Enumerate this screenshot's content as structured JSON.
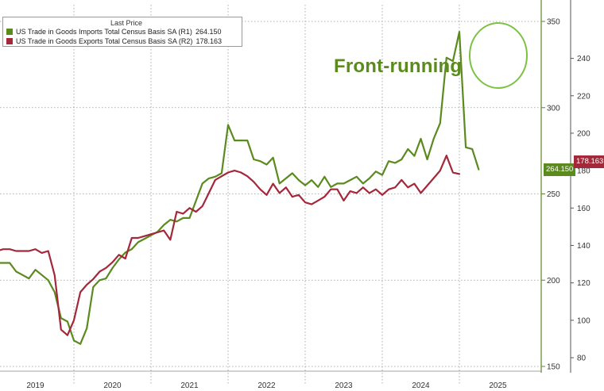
{
  "legend": {
    "header": "Last Price",
    "imports_label": "US Trade in Goods Imports Total Census Basis SA  (R1)",
    "imports_value": "264.150",
    "exports_label": "US Trade in Goods Exports Total Census Basis SA  (R2)",
    "exports_value": "178.163"
  },
  "annotation": {
    "text": "Front-running"
  },
  "colors": {
    "imports": "#5b8a1e",
    "exports": "#a3283a",
    "grid": "#9a9a9a",
    "annotation": "#5b8a1e"
  },
  "chart_data": {
    "type": "line",
    "title": "",
    "grid": true,
    "legend_position": "top-left",
    "x_ticks": [
      "2019",
      "2020",
      "2021",
      "2022",
      "2023",
      "2024",
      "2025"
    ],
    "y_left": {
      "label": "",
      "range": [
        150,
        350
      ],
      "ticks": [
        150,
        200,
        250,
        300,
        350
      ]
    },
    "y_right": {
      "label": "",
      "range": [
        80,
        250
      ],
      "ticks": [
        80,
        100,
        120,
        140,
        160,
        180,
        200,
        220,
        240
      ]
    },
    "series": [
      {
        "name": "US Trade in Goods Imports Total Census Basis SA (R1)",
        "axis": "left",
        "last_value": "264.150",
        "points": [
          [
            "2019-01",
            210.0
          ],
          [
            "2019-02",
            210.0
          ],
          [
            "2019-03",
            210.0
          ],
          [
            "2019-04",
            205.0
          ],
          [
            "2019-05",
            203.0
          ],
          [
            "2019-06",
            201.0
          ],
          [
            "2019-07",
            206.0
          ],
          [
            "2019-08",
            203.0
          ],
          [
            "2019-09",
            200.0
          ],
          [
            "2019-10",
            193.0
          ],
          [
            "2019-11",
            178.0
          ],
          [
            "2019-12",
            176.0
          ],
          [
            "2020-01",
            165.0
          ],
          [
            "2020-02",
            163.0
          ],
          [
            "2020-03",
            172.0
          ],
          [
            "2020-04",
            196.0
          ],
          [
            "2020-05",
            200.0
          ],
          [
            "2020-06",
            201.0
          ],
          [
            "2020-07",
            207.0
          ],
          [
            "2020-08",
            212.0
          ],
          [
            "2020-09",
            216.0
          ],
          [
            "2020-10",
            218.0
          ],
          [
            "2020-11",
            222.0
          ],
          [
            "2020-12",
            224.0
          ],
          [
            "2021-01",
            226.0
          ],
          [
            "2021-02",
            228.0
          ],
          [
            "2021-03",
            232.0
          ],
          [
            "2021-04",
            235.0
          ],
          [
            "2021-05",
            234.0
          ],
          [
            "2021-06",
            236.0
          ],
          [
            "2021-07",
            236.0
          ],
          [
            "2021-08",
            246.0
          ],
          [
            "2021-09",
            256.0
          ],
          [
            "2021-10",
            259.0
          ],
          [
            "2021-11",
            260.0
          ],
          [
            "2021-12",
            262.0
          ],
          [
            "2022-01",
            290.0
          ],
          [
            "2022-02",
            281.0
          ],
          [
            "2022-03",
            281.0
          ],
          [
            "2022-04",
            281.0
          ],
          [
            "2022-05",
            270.0
          ],
          [
            "2022-06",
            269.0
          ],
          [
            "2022-07",
            267.0
          ],
          [
            "2022-08",
            271.0
          ],
          [
            "2022-09",
            256.0
          ],
          [
            "2022-10",
            259.0
          ],
          [
            "2022-11",
            262.0
          ],
          [
            "2022-12",
            258.0
          ],
          [
            "2023-01",
            255.0
          ],
          [
            "2023-02",
            258.0
          ],
          [
            "2023-03",
            254.0
          ],
          [
            "2023-04",
            260.0
          ],
          [
            "2023-05",
            254.0
          ],
          [
            "2023-06",
            256.0
          ],
          [
            "2023-07",
            256.0
          ],
          [
            "2023-08",
            258.0
          ],
          [
            "2023-09",
            260.0
          ],
          [
            "2023-10",
            256.0
          ],
          [
            "2023-11",
            259.0
          ],
          [
            "2023-12",
            263.0
          ],
          [
            "2024-01",
            261.0
          ],
          [
            "2024-02",
            269.0
          ],
          [
            "2024-03",
            268.0
          ],
          [
            "2024-04",
            270.0
          ],
          [
            "2024-05",
            276.0
          ],
          [
            "2024-06",
            272.0
          ],
          [
            "2024-07",
            282.0
          ],
          [
            "2024-08",
            270.0
          ],
          [
            "2024-09",
            282.0
          ],
          [
            "2024-10",
            291.0
          ],
          [
            "2024-11",
            329.0
          ],
          [
            "2024-12",
            327.0
          ],
          [
            "2025-01",
            344.0
          ],
          [
            "2025-02",
            277.0
          ],
          [
            "2025-03",
            276.0
          ],
          [
            "2025-04",
            264.2
          ]
        ]
      },
      {
        "name": "US Trade in Goods Exports Total Census Basis SA (R2)",
        "axis": "right",
        "last_value": "178.163",
        "points": [
          [
            "2019-01",
            137.0
          ],
          [
            "2019-02",
            138.0
          ],
          [
            "2019-03",
            138.0
          ],
          [
            "2019-04",
            137.0
          ],
          [
            "2019-05",
            137.0
          ],
          [
            "2019-06",
            137.0
          ],
          [
            "2019-07",
            138.0
          ],
          [
            "2019-08",
            136.0
          ],
          [
            "2019-09",
            137.0
          ],
          [
            "2019-10",
            124.0
          ],
          [
            "2019-11",
            95.0
          ],
          [
            "2019-12",
            92.0
          ],
          [
            "2020-01",
            100.0
          ],
          [
            "2020-02",
            115.0
          ],
          [
            "2020-03",
            119.0
          ],
          [
            "2020-04",
            122.0
          ],
          [
            "2020-05",
            126.0
          ],
          [
            "2020-06",
            128.0
          ],
          [
            "2020-07",
            131.0
          ],
          [
            "2020-08",
            135.0
          ],
          [
            "2020-09",
            133.0
          ],
          [
            "2020-10",
            144.0
          ],
          [
            "2020-11",
            144.0
          ],
          [
            "2020-12",
            145.0
          ],
          [
            "2021-01",
            146.0
          ],
          [
            "2021-02",
            147.0
          ],
          [
            "2021-03",
            148.0
          ],
          [
            "2021-04",
            143.0
          ],
          [
            "2021-05",
            158.0
          ],
          [
            "2021-06",
            157.0
          ],
          [
            "2021-07",
            160.0
          ],
          [
            "2021-08",
            158.0
          ],
          [
            "2021-09",
            161.0
          ],
          [
            "2021-10",
            168.0
          ],
          [
            "2021-11",
            175.0
          ],
          [
            "2021-12",
            177.0
          ],
          [
            "2022-01",
            179.0
          ],
          [
            "2022-02",
            180.0
          ],
          [
            "2022-03",
            179.0
          ],
          [
            "2022-04",
            177.0
          ],
          [
            "2022-05",
            174.0
          ],
          [
            "2022-06",
            170.0
          ],
          [
            "2022-07",
            167.0
          ],
          [
            "2022-08",
            173.0
          ],
          [
            "2022-09",
            168.0
          ],
          [
            "2022-10",
            171.0
          ],
          [
            "2022-11",
            166.0
          ],
          [
            "2022-12",
            167.0
          ],
          [
            "2023-01",
            163.0
          ],
          [
            "2023-02",
            162.0
          ],
          [
            "2023-03",
            164.0
          ],
          [
            "2023-04",
            166.0
          ],
          [
            "2023-05",
            170.0
          ],
          [
            "2023-06",
            170.0
          ],
          [
            "2023-07",
            164.0
          ],
          [
            "2023-08",
            169.0
          ],
          [
            "2023-09",
            168.0
          ],
          [
            "2023-10",
            171.0
          ],
          [
            "2023-11",
            168.0
          ],
          [
            "2023-12",
            170.0
          ],
          [
            "2024-01",
            167.0
          ],
          [
            "2024-02",
            170.0
          ],
          [
            "2024-03",
            171.0
          ],
          [
            "2024-04",
            175.0
          ],
          [
            "2024-05",
            171.0
          ],
          [
            "2024-06",
            173.0
          ],
          [
            "2024-07",
            168.0
          ],
          [
            "2024-08",
            172.0
          ],
          [
            "2024-09",
            176.0
          ],
          [
            "2024-10",
            180.0
          ],
          [
            "2024-11",
            188.0
          ],
          [
            "2024-12",
            179.0
          ],
          [
            "2025-01",
            178.2
          ]
        ]
      }
    ]
  }
}
